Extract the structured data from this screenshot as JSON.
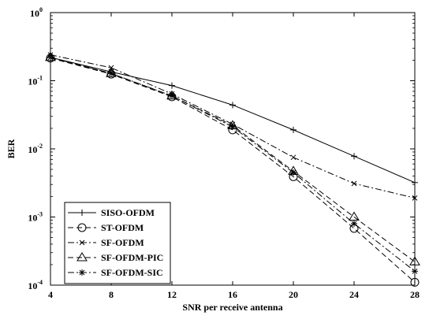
{
  "chart_data": {
    "type": "line",
    "title": "",
    "xlabel": "SNR per receive antenna",
    "ylabel": "BER",
    "x_ticks": [
      4,
      8,
      12,
      16,
      20,
      24,
      28
    ],
    "xlim": [
      4,
      28
    ],
    "y_scale": "log",
    "ylim": [
      0.0001,
      1
    ],
    "y_ticks": [
      {
        "base": "10",
        "exp": "0",
        "value": 1
      },
      {
        "base": "10",
        "exp": "-1",
        "value": 0.1
      },
      {
        "base": "10",
        "exp": "-2",
        "value": 0.01
      },
      {
        "base": "10",
        "exp": "-3",
        "value": 0.001
      },
      {
        "base": "10",
        "exp": "-4",
        "value": 0.0001
      }
    ],
    "grid": false,
    "legend_position": "bottom-left",
    "series": [
      {
        "name": "SISO-OFDM",
        "marker": "plus",
        "dash": "solid",
        "x": [
          4,
          8,
          12,
          16,
          20,
          24,
          28
        ],
        "y": [
          0.22,
          0.135,
          0.085,
          0.044,
          0.019,
          0.0078,
          0.0032
        ]
      },
      {
        "name": "ST-OFDM",
        "marker": "circle",
        "dash": "dashed",
        "x": [
          4,
          8,
          12,
          16,
          20,
          24,
          28
        ],
        "y": [
          0.215,
          0.125,
          0.058,
          0.019,
          0.0039,
          0.00068,
          0.00011
        ]
      },
      {
        "name": "SF-OFDM",
        "marker": "x",
        "dash": "dashdot",
        "x": [
          4,
          8,
          12,
          16,
          20,
          24,
          28
        ],
        "y": [
          0.24,
          0.155,
          0.064,
          0.023,
          0.0075,
          0.0031,
          0.0019
        ]
      },
      {
        "name": "SF-OFDM-PIC",
        "marker": "triangle",
        "dash": "dashed",
        "x": [
          4,
          8,
          12,
          16,
          20,
          24,
          28
        ],
        "y": [
          0.22,
          0.128,
          0.06,
          0.022,
          0.0047,
          0.001,
          0.00022
        ]
      },
      {
        "name": "SF-OFDM-SIC",
        "marker": "star",
        "dash": "dashdot",
        "x": [
          4,
          8,
          12,
          16,
          20,
          24,
          28
        ],
        "y": [
          0.22,
          0.128,
          0.06,
          0.021,
          0.0045,
          0.0008,
          0.00016
        ]
      }
    ]
  }
}
